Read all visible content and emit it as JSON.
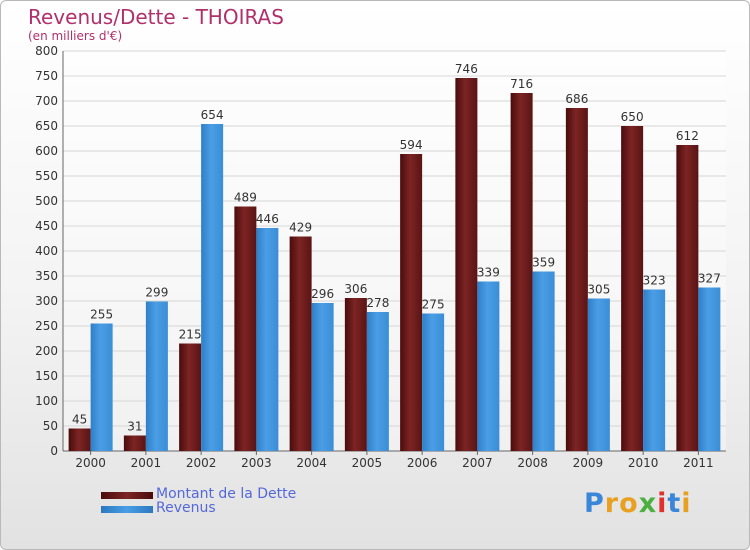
{
  "header": {
    "title": "Revenus/Dette - THOIRAS",
    "subtitle": "(en milliers d'€)"
  },
  "legend": {
    "debt_label": "Montant de la Dette",
    "revenue_label": "Revenus"
  },
  "logo": {
    "text": "Proxiti",
    "letter_colors": [
      "#3a86d8",
      "#e8a020",
      "#e8a020",
      "#4bb040",
      "#e03030",
      "#3a86d8",
      "#e8a020"
    ]
  },
  "colors": {
    "debt": "#7d2424",
    "revenue": "#4b9ee6",
    "grid": "#d6d6d6",
    "axis": "#666666",
    "title": "#b0306b"
  },
  "chart_data": {
    "type": "bar",
    "categories": [
      "2000",
      "2001",
      "2002",
      "2003",
      "2004",
      "2005",
      "2006",
      "2007",
      "2008",
      "2009",
      "2010",
      "2011"
    ],
    "series": [
      {
        "name": "Montant de la Dette",
        "values": [
          45,
          31,
          215,
          489,
          429,
          306,
          594,
          746,
          716,
          686,
          650,
          612
        ]
      },
      {
        "name": "Revenus",
        "values": [
          255,
          299,
          654,
          446,
          296,
          278,
          275,
          339,
          359,
          305,
          323,
          327
        ]
      }
    ],
    "title": "Revenus/Dette - THOIRAS",
    "subtitle": "(en milliers d'€)",
    "ylim": [
      0,
      800
    ],
    "ytick_step": 50,
    "grid": true,
    "legend_position": "bottom-left"
  }
}
